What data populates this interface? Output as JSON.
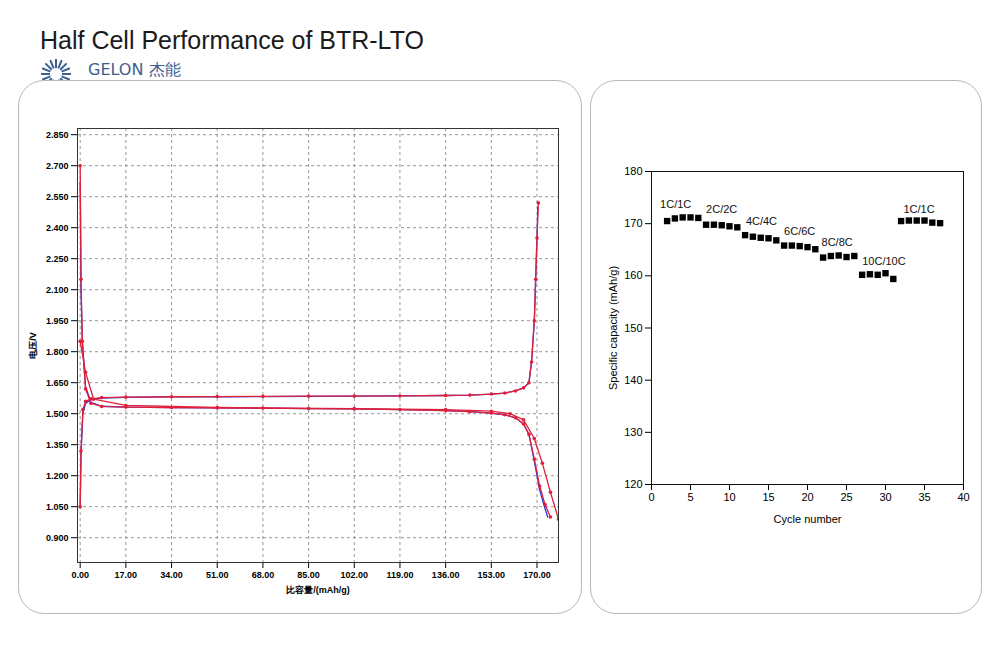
{
  "title": "Half Cell Performance of BTR-LTO",
  "logo": {
    "name": "GELON 杰能",
    "url": "WWW.LIBGROUP.NET"
  },
  "chart_data": [
    {
      "type": "line",
      "x_label": "比容量/(mAh/g)",
      "y_label": "电压/V",
      "xlim": [
        -1,
        178
      ],
      "ylim": [
        0.78,
        2.88
      ],
      "xticks": [
        {
          "value": 0,
          "label": "0.00"
        },
        {
          "value": 17,
          "label": "17.00"
        },
        {
          "value": 34,
          "label": "34.00"
        },
        {
          "value": 51,
          "label": "51.00"
        },
        {
          "value": 68,
          "label": "68.00"
        },
        {
          "value": 85,
          "label": "85.00"
        },
        {
          "value": 102,
          "label": "102.00"
        },
        {
          "value": 119,
          "label": "119.00"
        },
        {
          "value": 136,
          "label": "136.00"
        },
        {
          "value": 153,
          "label": "153.00"
        },
        {
          "value": 170,
          "label": "170.00"
        }
      ],
      "yticks": [
        {
          "value": 0.9,
          "label": "0.900"
        },
        {
          "value": 1.05,
          "label": "1.050"
        },
        {
          "value": 1.2,
          "label": "1.200"
        },
        {
          "value": 1.35,
          "label": "1.350"
        },
        {
          "value": 1.5,
          "label": "1.500"
        },
        {
          "value": 1.65,
          "label": "1.650"
        },
        {
          "value": 1.8,
          "label": "1.800"
        },
        {
          "value": 1.95,
          "label": "1.950"
        },
        {
          "value": 2.1,
          "label": "2.100"
        },
        {
          "value": 2.25,
          "label": "2.250"
        },
        {
          "value": 2.4,
          "label": "2.400"
        },
        {
          "value": 2.55,
          "label": "2.550"
        },
        {
          "value": 2.7,
          "label": "2.700"
        },
        {
          "value": 2.85,
          "label": "2.850"
        }
      ],
      "grid": true,
      "series": [
        {
          "color": "#2036e6",
          "marker": "none",
          "line_style": "solid",
          "x": [
            0,
            0.3,
            1,
            2,
            4,
            8,
            17,
            34,
            51,
            68,
            85,
            102,
            119,
            136,
            145,
            153,
            158,
            162,
            165,
            167,
            168,
            169,
            169.5,
            170,
            170.3
          ],
          "values": [
            1.05,
            1.3,
            1.5,
            1.55,
            1.568,
            1.576,
            1.579,
            1.581,
            1.582,
            1.583,
            1.584,
            1.585,
            1.586,
            1.588,
            1.59,
            1.595,
            1.6,
            1.61,
            1.625,
            1.65,
            1.76,
            1.95,
            2.15,
            2.35,
            2.5
          ]
        },
        {
          "color": "#2036e6",
          "marker": "none",
          "line_style": "solid",
          "x": [
            0,
            0.3,
            0.8,
            2,
            4,
            8,
            17,
            34,
            51,
            68,
            85,
            102,
            119,
            136,
            145,
            153,
            158,
            162,
            165,
            167,
            169,
            171,
            173,
            174
          ],
          "values": [
            2.62,
            2.1,
            1.85,
            1.63,
            1.555,
            1.536,
            1.532,
            1.53,
            1.528,
            1.527,
            1.525,
            1.523,
            1.52,
            1.515,
            1.51,
            1.503,
            1.495,
            1.48,
            1.45,
            1.4,
            1.27,
            1.13,
            1.04,
            1.0
          ]
        },
        {
          "color": "#e0203a",
          "marker": "circle",
          "line_style": "solid",
          "x": [
            0,
            0.3,
            1,
            2,
            4,
            8,
            17,
            34,
            51,
            68,
            85,
            102,
            119,
            136,
            145,
            153,
            158,
            162,
            165,
            167,
            168,
            169,
            169.5,
            170,
            170.5
          ],
          "values": [
            1.05,
            1.32,
            1.52,
            1.56,
            1.572,
            1.578,
            1.58,
            1.582,
            1.583,
            1.584,
            1.585,
            1.585,
            1.586,
            1.588,
            1.59,
            1.595,
            1.6,
            1.61,
            1.625,
            1.65,
            1.75,
            1.95,
            2.15,
            2.35,
            2.52
          ]
        },
        {
          "color": "#e0203a",
          "marker": "circle",
          "line_style": "solid",
          "x": [
            0,
            0.3,
            0.8,
            2,
            4,
            8,
            17,
            34,
            51,
            68,
            85,
            102,
            119,
            136,
            145,
            153,
            158,
            162,
            165,
            167,
            169,
            171,
            173,
            175
          ],
          "values": [
            2.7,
            2.15,
            1.85,
            1.62,
            1.55,
            1.535,
            1.532,
            1.53,
            1.528,
            1.527,
            1.525,
            1.523,
            1.52,
            1.515,
            1.51,
            1.503,
            1.495,
            1.48,
            1.45,
            1.4,
            1.28,
            1.15,
            1.06,
            1.0
          ]
        },
        {
          "color": "#e0203a",
          "marker": "circle",
          "line_style": "solid",
          "x": [
            0,
            2,
            5,
            17,
            51,
            102,
            136,
            153,
            160,
            165,
            169,
            172,
            175,
            178
          ],
          "values": [
            1.85,
            1.7,
            1.57,
            1.54,
            1.53,
            1.525,
            1.52,
            1.512,
            1.5,
            1.47,
            1.38,
            1.26,
            1.12,
            0.99
          ]
        }
      ]
    },
    {
      "type": "scatter",
      "x_label": "Cycle number",
      "y_label": "Specific capacity (mAh/g)",
      "xlim": [
        0,
        40
      ],
      "ylim": [
        120,
        180
      ],
      "xticks": [
        0,
        5,
        10,
        15,
        20,
        25,
        30,
        35,
        40
      ],
      "yticks": [
        120,
        130,
        140,
        150,
        160,
        170,
        180
      ],
      "grid": false,
      "marker": "square",
      "color": "#000000",
      "x": [
        2,
        3,
        4,
        5,
        6,
        7,
        8,
        9,
        10,
        11,
        12,
        13,
        14,
        15,
        16,
        17,
        18,
        19,
        20,
        21,
        22,
        23,
        24,
        25,
        26,
        27,
        28,
        29,
        30,
        31,
        32,
        33,
        34,
        35,
        36,
        37
      ],
      "values": [
        170.5,
        171,
        171.2,
        171.2,
        171.1,
        169.8,
        169.8,
        169.7,
        169.5,
        169.3,
        167.8,
        167.5,
        167.3,
        167.2,
        166.8,
        165.8,
        165.8,
        165.7,
        165.5,
        165.1,
        163.5,
        163.8,
        163.9,
        163.6,
        163.8,
        160.2,
        160.3,
        160.2,
        160.5,
        159.4,
        170.5,
        170.6,
        170.6,
        170.6,
        170.2,
        170.1
      ],
      "annotations": [
        {
          "text": "1C/1C",
          "x": 3.1,
          "y": 173.6
        },
        {
          "text": "2C/2C",
          "x": 9,
          "y": 172.7
        },
        {
          "text": "4C/4C",
          "x": 14.1,
          "y": 170.4
        },
        {
          "text": "6C/6C",
          "x": 19,
          "y": 168.5
        },
        {
          "text": "8C/8C",
          "x": 23.8,
          "y": 166.3
        },
        {
          "text": "10C/10C",
          "x": 29.8,
          "y": 162.7
        },
        {
          "text": "1C/1C",
          "x": 34.3,
          "y": 172.7
        }
      ]
    }
  ]
}
